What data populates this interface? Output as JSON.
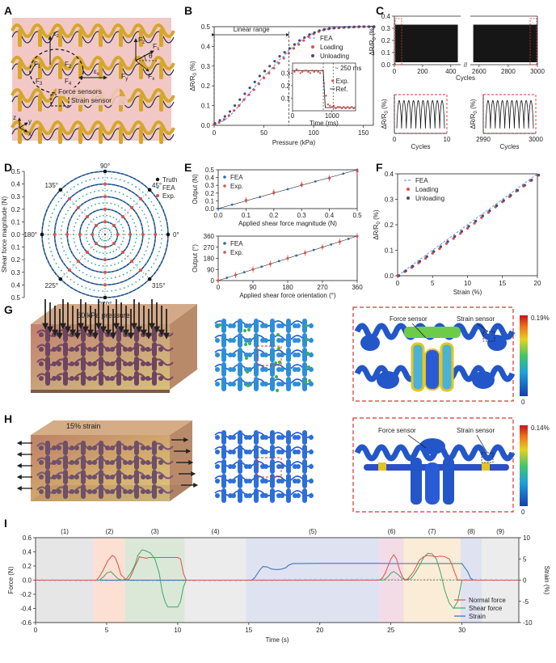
{
  "panels": {
    "A": "A",
    "B": "B",
    "C": "C",
    "D": "D",
    "E": "E",
    "F": "F",
    "G": "G",
    "H": "H",
    "I": "I"
  },
  "panelA": {
    "labels": {
      "ez": "ε",
      "ex": "ε",
      "fz": "F",
      "fs": "F",
      "theta": "θ",
      "fx": "F",
      "fy": "F",
      "force_sensors": "Force sensors",
      "strain_sensor": "Strain sensor",
      "z": "z",
      "y": "y",
      "x": "x"
    },
    "subs": {
      "ez": "z",
      "ex": "x",
      "fz": "z",
      "fs": "s",
      "fx": "x",
      "fy": "y",
      "f1": "1",
      "f2": "2",
      "f3": "3",
      "f4": "4"
    },
    "colors": {
      "bg": "#f2c8c6",
      "gold": "#d6a62b",
      "navy": "#22304a"
    }
  },
  "chartB": {
    "type": "line",
    "ylabel": "ΔR/R",
    "ysub": "0",
    "yunit": " (%)",
    "xlabel": "Pressure (kPa)",
    "xlim": [
      0,
      160
    ],
    "ylim": [
      0,
      0.5
    ],
    "xticks": [
      0,
      50,
      100,
      150
    ],
    "yticks": [
      0,
      0.1,
      0.2,
      0.3,
      0.4,
      0.5
    ],
    "annotation": "Linear range",
    "linear_range_kpa": [
      0,
      75
    ],
    "legend": [
      "FEA",
      "Loading",
      "Unloading"
    ],
    "fea": {
      "x": [
        0,
        5,
        10,
        15,
        20,
        25,
        30,
        35,
        40,
        45,
        50,
        55,
        60,
        65,
        70,
        75,
        80,
        85,
        90,
        95,
        100,
        105,
        110,
        115,
        120,
        125,
        130,
        135,
        140,
        145,
        150,
        155,
        160
      ],
      "y": [
        0,
        0.012,
        0.025,
        0.045,
        0.07,
        0.1,
        0.13,
        0.16,
        0.19,
        0.22,
        0.25,
        0.27,
        0.3,
        0.33,
        0.35,
        0.38,
        0.4,
        0.42,
        0.44,
        0.455,
        0.468,
        0.478,
        0.485,
        0.49,
        0.493,
        0.495,
        0.497,
        0.498,
        0.499,
        0.5,
        0.5,
        0.5,
        0.5
      ]
    },
    "loading": {
      "x": [
        0,
        5,
        10,
        15,
        20,
        25,
        30,
        35,
        40,
        45,
        50,
        55,
        60,
        65,
        70,
        75,
        80,
        85,
        90,
        95,
        100,
        105,
        110,
        115,
        120,
        125,
        130,
        135,
        140,
        145,
        150,
        155,
        160
      ],
      "y": [
        0.005,
        0.015,
        0.03,
        0.05,
        0.075,
        0.1,
        0.13,
        0.155,
        0.18,
        0.21,
        0.24,
        0.265,
        0.29,
        0.315,
        0.34,
        0.365,
        0.39,
        0.41,
        0.43,
        0.45,
        0.463,
        0.475,
        0.483,
        0.488,
        0.492,
        0.494,
        0.496,
        0.497,
        0.498,
        0.499,
        0.5,
        0.5,
        0.5
      ]
    },
    "unloading": {
      "x": [
        0,
        5,
        10,
        15,
        20,
        25,
        30,
        35,
        40,
        45,
        50,
        55,
        60,
        65,
        70,
        75,
        80,
        85,
        90,
        95,
        100,
        105,
        110,
        115,
        120,
        125,
        130,
        135,
        140,
        145,
        150,
        155,
        160
      ],
      "y": [
        0.01,
        0.025,
        0.045,
        0.07,
        0.1,
        0.13,
        0.16,
        0.19,
        0.22,
        0.25,
        0.275,
        0.3,
        0.325,
        0.35,
        0.37,
        0.39,
        0.41,
        0.43,
        0.445,
        0.46,
        0.47,
        0.48,
        0.487,
        0.491,
        0.494,
        0.496,
        0.497,
        0.498,
        0.499,
        0.5,
        0.5,
        0.5,
        0.5
      ]
    },
    "inset": {
      "xlabel": "Time (ms)",
      "xticks": [
        0,
        1000
      ],
      "xlim": [
        0,
        1600
      ],
      "ylim": [
        0,
        0.38
      ],
      "yticks": [
        0.1,
        0.2,
        0.3
      ],
      "annotation": "~ 250 ms",
      "legend": [
        "Exp.",
        "Ref."
      ],
      "exp": {
        "x": [
          0,
          50,
          100,
          150,
          200,
          250,
          300,
          350,
          400,
          450,
          500,
          550,
          600,
          650,
          700,
          750,
          800,
          850,
          900,
          950,
          1000,
          1050,
          1100,
          1150,
          1200,
          1250,
          1300,
          1350,
          1400,
          1450,
          1500,
          1550
        ],
        "y": [
          0.32,
          0.31,
          0.33,
          0.32,
          0.3,
          0.31,
          0.32,
          0.32,
          0.31,
          0.3,
          0.32,
          0.31,
          0.32,
          0.31,
          0.3,
          0.32,
          0.22,
          0.12,
          0.05,
          0.04,
          0.03,
          0.04,
          0.02,
          0.03,
          0.03,
          0.02,
          0.03,
          0.02,
          0.03,
          0.02,
          0.03,
          0.02
        ]
      },
      "ref": {
        "x": [
          0,
          780,
          830,
          1600
        ],
        "y": [
          0.32,
          0.32,
          0.025,
          0.025
        ]
      }
    }
  },
  "chartC": {
    "ylabel": "ΔR/R",
    "ysub": "0",
    "yunit": " (%)",
    "xlabel": "Cycles",
    "xticks": [
      0,
      200,
      400,
      2600,
      2800,
      3000
    ],
    "yticks": [
      0,
      0.1,
      0.2,
      0.3,
      0.4
    ],
    "ylim": [
      0,
      0.4
    ],
    "band": [
      0.02,
      0.33
    ],
    "zoom_left": {
      "xlabel": "Cycles",
      "xticks": [
        0,
        10
      ],
      "cycles": 10
    },
    "zoom_right": {
      "xlabel": "Cycles",
      "xticks": [
        2990,
        3000
      ],
      "cycles": 10
    }
  },
  "chartD": {
    "type": "scatter",
    "ylabel": "Shear force magnitude (N)",
    "rticks": [
      0.5,
      0.4,
      0.3,
      0.2,
      0.1,
      0,
      0.1,
      0.2,
      0.3,
      0.4,
      0.5
    ],
    "angle_labels": [
      "90°",
      "45°",
      "0°",
      "315°",
      "270°",
      "225°",
      "180°",
      "135°"
    ],
    "legend": [
      "Truth",
      "FEA",
      "Exp."
    ],
    "rings": [
      0.1,
      0.2,
      0.3,
      0.4,
      0.5
    ],
    "spokes_deg": [
      0,
      45,
      90,
      135,
      180,
      225,
      270,
      315
    ]
  },
  "chartE1": {
    "type": "scatter",
    "ylabel": "Output (N)",
    "xlabel": "Applied shear force magnitude (N)",
    "xlim": [
      0,
      0.5
    ],
    "ylim": [
      0,
      0.5
    ],
    "xticks": [
      0.0,
      0.1,
      0.2,
      0.3,
      0.4,
      0.5
    ],
    "yticks": [
      0.0,
      0.1,
      0.2,
      0.3,
      0.4,
      0.5
    ],
    "legend": [
      "FEA",
      "Exp."
    ],
    "fea": {
      "x": [
        0,
        0.05,
        0.1,
        0.15,
        0.2,
        0.25,
        0.3,
        0.35,
        0.4,
        0.45,
        0.5
      ],
      "y": [
        0,
        0.05,
        0.1,
        0.15,
        0.2,
        0.25,
        0.3,
        0.35,
        0.4,
        0.45,
        0.5
      ]
    },
    "exp": {
      "x": [
        0.1,
        0.2,
        0.3,
        0.4,
        0.5
      ],
      "y": [
        0.11,
        0.21,
        0.31,
        0.39,
        0.48
      ]
    }
  },
  "chartE2": {
    "type": "scatter",
    "ylabel": "Output (°)",
    "xlabel": "Applied shear force orientation (°)",
    "xlim": [
      0,
      360
    ],
    "ylim": [
      0,
      360
    ],
    "xticks": [
      0,
      90,
      180,
      270,
      360
    ],
    "yticks": [
      0,
      90,
      180,
      270,
      360
    ],
    "legend": [
      "FEA",
      "Exp."
    ],
    "fea": {
      "x": [
        0,
        22.5,
        45,
        67.5,
        90,
        112.5,
        135,
        157.5,
        180,
        202.5,
        225,
        247.5,
        270,
        292.5,
        315,
        337.5,
        360
      ],
      "y": [
        0,
        22.5,
        45,
        67.5,
        90,
        112.5,
        135,
        157.5,
        180,
        202.5,
        225,
        247.5,
        270,
        292.5,
        315,
        337.5,
        360
      ]
    },
    "exp": {
      "x": [
        0,
        45,
        90,
        135,
        180,
        225,
        270,
        315,
        360
      ],
      "y": [
        2,
        46,
        91,
        134,
        181,
        224,
        271,
        314,
        358
      ]
    }
  },
  "chartF": {
    "type": "line",
    "ylabel": "ΔR/R",
    "ysub": "0",
    "yunit": " (%)",
    "xlabel": "Strain (%)",
    "xlim": [
      0,
      20
    ],
    "ylim": [
      0,
      0.4
    ],
    "xticks": [
      0,
      5,
      10,
      15,
      20
    ],
    "yticks": [
      0,
      0.1,
      0.2,
      0.3,
      0.4
    ],
    "legend": [
      "FEA",
      "Loading",
      "Unloading"
    ],
    "fea": {
      "x": [
        0,
        20
      ],
      "y": [
        0,
        0.4
      ]
    },
    "loading": {
      "x": [
        0,
        1,
        2,
        3,
        4,
        5,
        6,
        7,
        8,
        9,
        10,
        11,
        12,
        13,
        14,
        15,
        16,
        17,
        18,
        19,
        20
      ],
      "y": [
        0,
        0.016,
        0.032,
        0.05,
        0.068,
        0.088,
        0.106,
        0.126,
        0.146,
        0.166,
        0.186,
        0.206,
        0.228,
        0.248,
        0.27,
        0.29,
        0.31,
        0.332,
        0.352,
        0.374,
        0.395
      ]
    },
    "unloading": {
      "x": [
        0,
        1,
        2,
        3,
        4,
        5,
        6,
        7,
        8,
        9,
        10,
        11,
        12,
        13,
        14,
        15,
        16,
        17,
        18,
        19,
        20
      ],
      "y": [
        0,
        0.019,
        0.037,
        0.056,
        0.075,
        0.095,
        0.114,
        0.134,
        0.154,
        0.174,
        0.194,
        0.214,
        0.235,
        0.255,
        0.275,
        0.295,
        0.315,
        0.335,
        0.355,
        0.375,
        0.395
      ]
    }
  },
  "panelG": {
    "title": "60 kPa pressure",
    "force_sensor": "Force sensor",
    "strain_sensor": "Strain sensor",
    "cbar_max": "0.19%",
    "cbar_min": "0"
  },
  "panelH": {
    "title": "15% strain",
    "force_sensor": "Force sensor",
    "strain_sensor": "Strain sensor",
    "cbar_max": "0.14%",
    "cbar_min": "0"
  },
  "chartI": {
    "type": "line",
    "ylabel_left": "Force (N)",
    "ylabel_right": "Strain (%)",
    "xlabel": "Time (s)",
    "xlim": [
      0,
      34
    ],
    "ylim_left": [
      -0.6,
      0.6
    ],
    "ylim_right": [
      -10,
      10
    ],
    "xticks": [
      0,
      5,
      10,
      15,
      20,
      25,
      30
    ],
    "yticks_left": [
      -0.6,
      -0.4,
      -0.2,
      0.0,
      0.2,
      0.4,
      0.6
    ],
    "yticks_right": [
      -10,
      -5,
      0,
      5,
      10
    ],
    "phases": [
      {
        "label": "(1)",
        "start": 0,
        "end": 4.1,
        "color": "#e6e6e6"
      },
      {
        "label": "(2)",
        "start": 4.1,
        "end": 6.3,
        "color": "#fbe0d3"
      },
      {
        "label": "(3)",
        "start": 6.3,
        "end": 10.5,
        "color": "#dbe8d8"
      },
      {
        "label": "(4)",
        "start": 10.5,
        "end": 14.8,
        "color": "#ececec"
      },
      {
        "label": "(5)",
        "start": 14.8,
        "end": 24.2,
        "color": "#dfe2f0"
      },
      {
        "label": "(6)",
        "start": 24.2,
        "end": 25.9,
        "color": "#f4dce6"
      },
      {
        "label": "(7)",
        "start": 25.9,
        "end": 29.9,
        "color": "#fbecd8"
      },
      {
        "label": "(8)",
        "start": 29.9,
        "end": 31.4,
        "color": "#dfe2f0"
      },
      {
        "label": "(9)",
        "start": 31.4,
        "end": 34,
        "color": "#ececec"
      }
    ],
    "legend": [
      "Normal force",
      "Shear force",
      "Strain"
    ],
    "colors": {
      "normal": "#d9534f",
      "shear": "#3fa66a",
      "strain": "#2f6fb4"
    },
    "normal": {
      "x": [
        0,
        4.3,
        4.5,
        4.7,
        4.9,
        5.1,
        5.4,
        5.6,
        5.8,
        6.0,
        6.4,
        6.6,
        6.8,
        7.0,
        7.2,
        7.3,
        7.5,
        7.8,
        8.0,
        10.0,
        10.2,
        10.4,
        10.6,
        24.2,
        24.4,
        24.6,
        24.8,
        25.0,
        25.2,
        25.4,
        25.6,
        25.8,
        26.0,
        26.2,
        26.6,
        26.8,
        27.0,
        27.3,
        27.6,
        27.9,
        28.2,
        28.5,
        28.8,
        29.1,
        29.3,
        29.5,
        29.7,
        34
      ],
      "y": [
        0,
        0,
        0.05,
        0.12,
        0.2,
        0.28,
        0.35,
        0.32,
        0.22,
        0.08,
        0,
        0.02,
        0.1,
        0.2,
        0.28,
        0.33,
        0.32,
        0.31,
        0.32,
        0.32,
        0.3,
        0.1,
        0,
        0,
        0.03,
        0.1,
        0.2,
        0.3,
        0.36,
        0.3,
        0.15,
        0.05,
        0,
        0.02,
        0.12,
        0.2,
        0.28,
        0.33,
        0.35,
        0.34,
        0.33,
        0.34,
        0.33,
        0.3,
        0.22,
        0.1,
        0,
        0
      ]
    },
    "shear": {
      "x": [
        0,
        4.5,
        4.8,
        5.0,
        5.3,
        5.5,
        5.8,
        6.1,
        6.4,
        6.7,
        7.0,
        7.2,
        7.5,
        7.8,
        8.1,
        8.4,
        8.7,
        8.9,
        9.1,
        9.3,
        9.5,
        10.0,
        10.2,
        10.4,
        10.6,
        24.5,
        24.8,
        25.0,
        25.2,
        25.5,
        25.8,
        26.1,
        26.4,
        26.7,
        27.0,
        27.3,
        27.6,
        27.9,
        28.2,
        28.5,
        28.8,
        29.1,
        29.4,
        29.7,
        30.0,
        34
      ],
      "y": [
        0,
        0,
        0.05,
        0.1,
        0.12,
        0.08,
        0.02,
        0,
        0.02,
        0.1,
        0.22,
        0.35,
        0.43,
        0.41,
        0.38,
        0.3,
        0.1,
        -0.15,
        -0.3,
        -0.38,
        -0.38,
        -0.38,
        -0.3,
        -0.1,
        0,
        0,
        0.05,
        0.1,
        0.12,
        0.08,
        0.02,
        0,
        0.02,
        0.1,
        0.2,
        0.32,
        0.38,
        0.37,
        0.3,
        0.1,
        -0.15,
        -0.32,
        -0.4,
        -0.3,
        0,
        0
      ]
    },
    "strain": {
      "x": [
        0,
        15.2,
        15.4,
        15.6,
        15.8,
        16.0,
        16.3,
        16.6,
        17.0,
        17.3,
        17.6,
        17.8,
        18.1,
        18.4,
        18.7,
        20,
        22,
        24,
        25,
        26,
        28,
        30.0,
        30.4,
        30.6,
        30.8,
        34
      ],
      "y": [
        0,
        0,
        0.5,
        1.5,
        2.5,
        3.2,
        3.1,
        2.6,
        2.5,
        2.6,
        2.9,
        3.5,
        3.9,
        3.9,
        3.9,
        3.95,
        3.95,
        3.95,
        3.9,
        3.9,
        3.9,
        3.9,
        2,
        0.5,
        0,
        0
      ]
    }
  }
}
